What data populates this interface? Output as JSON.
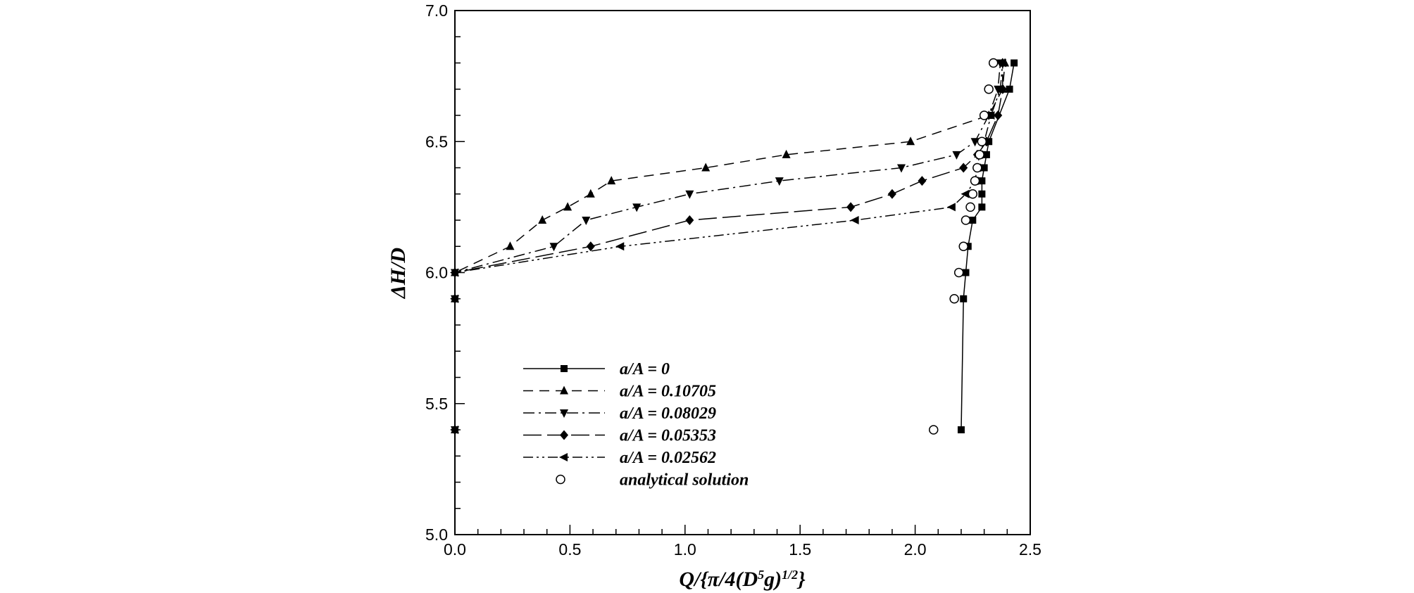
{
  "chart_data": {
    "type": "line",
    "xlabel": "Q/{π/4(D⁵g)^1/2}",
    "ylabel": "ΔH/D",
    "xlim": [
      0.0,
      2.5
    ],
    "ylim": [
      5.0,
      7.0
    ],
    "x_ticks": [
      "0.0",
      "0.5",
      "1.0",
      "1.5",
      "2.0",
      "2.5"
    ],
    "y_ticks": [
      "5.0",
      "5.5",
      "6.0",
      "6.5",
      "7.0"
    ],
    "legend_position": "lower-left",
    "grid": false,
    "series": [
      {
        "name": "a/A = 0",
        "line": "solid",
        "marker": "square",
        "points": [
          [
            2.2,
            5.4
          ],
          [
            2.21,
            5.9
          ],
          [
            2.22,
            6.0
          ],
          [
            2.23,
            6.1
          ],
          [
            2.25,
            6.2
          ],
          [
            2.29,
            6.25
          ],
          [
            2.29,
            6.3
          ],
          [
            2.29,
            6.35
          ],
          [
            2.3,
            6.4
          ],
          [
            2.31,
            6.45
          ],
          [
            2.32,
            6.5
          ],
          [
            2.41,
            6.7
          ],
          [
            2.43,
            6.8
          ]
        ]
      },
      {
        "name": "a/A = 0.10705",
        "line": "dashed",
        "marker": "triangle-up",
        "points": [
          [
            0.0,
            5.4
          ],
          [
            0.0,
            5.9
          ],
          [
            0.0,
            6.0
          ],
          [
            0.24,
            6.1
          ],
          [
            0.38,
            6.2
          ],
          [
            0.49,
            6.25
          ],
          [
            0.59,
            6.3
          ],
          [
            0.68,
            6.35
          ],
          [
            1.09,
            6.4
          ],
          [
            1.44,
            6.45
          ],
          [
            1.98,
            6.5
          ],
          [
            2.32,
            6.6
          ],
          [
            2.38,
            6.7
          ],
          [
            2.39,
            6.8
          ]
        ]
      },
      {
        "name": "a/A = 0.08029",
        "line": "dash-dot",
        "marker": "triangle-down",
        "points": [
          [
            0.0,
            5.4
          ],
          [
            0.0,
            5.9
          ],
          [
            0.0,
            6.0
          ],
          [
            0.43,
            6.1
          ],
          [
            0.57,
            6.2
          ],
          [
            0.79,
            6.25
          ],
          [
            1.02,
            6.3
          ],
          [
            1.41,
            6.35
          ],
          [
            1.94,
            6.4
          ],
          [
            2.18,
            6.45
          ],
          [
            2.26,
            6.5
          ],
          [
            2.32,
            6.6
          ],
          [
            2.36,
            6.7
          ],
          [
            2.37,
            6.8
          ]
        ]
      },
      {
        "name": "a/A = 0.05353",
        "line": "long-dash",
        "marker": "diamond",
        "points": [
          [
            0.0,
            5.4
          ],
          [
            0.0,
            5.9
          ],
          [
            0.0,
            6.0
          ],
          [
            0.59,
            6.1
          ],
          [
            1.02,
            6.2
          ],
          [
            1.72,
            6.25
          ],
          [
            1.9,
            6.3
          ],
          [
            2.03,
            6.35
          ],
          [
            2.21,
            6.4
          ],
          [
            2.27,
            6.45
          ],
          [
            2.31,
            6.5
          ],
          [
            2.36,
            6.6
          ],
          [
            2.38,
            6.7
          ],
          [
            2.38,
            6.8
          ]
        ]
      },
      {
        "name": "a/A = 0.02562",
        "line": "dash-dot-dot",
        "marker": "triangle-left",
        "points": [
          [
            0.0,
            5.4
          ],
          [
            0.0,
            5.9
          ],
          [
            0.0,
            6.0
          ],
          [
            0.72,
            6.1
          ],
          [
            1.74,
            6.2
          ],
          [
            2.16,
            6.25
          ],
          [
            2.22,
            6.3
          ],
          [
            2.26,
            6.35
          ],
          [
            2.27,
            6.4
          ],
          [
            2.28,
            6.45
          ],
          [
            2.3,
            6.5
          ],
          [
            2.33,
            6.6
          ],
          [
            2.37,
            6.7
          ],
          [
            2.38,
            6.8
          ]
        ]
      },
      {
        "name": "analytical solution",
        "line": "none",
        "marker": "circle-open",
        "points": [
          [
            2.08,
            5.4
          ],
          [
            2.17,
            5.9
          ],
          [
            2.19,
            6.0
          ],
          [
            2.21,
            6.1
          ],
          [
            2.22,
            6.2
          ],
          [
            2.24,
            6.25
          ],
          [
            2.25,
            6.3
          ],
          [
            2.26,
            6.35
          ],
          [
            2.27,
            6.4
          ],
          [
            2.28,
            6.45
          ],
          [
            2.29,
            6.5
          ],
          [
            2.3,
            6.6
          ],
          [
            2.32,
            6.7
          ],
          [
            2.34,
            6.8
          ]
        ]
      }
    ]
  }
}
